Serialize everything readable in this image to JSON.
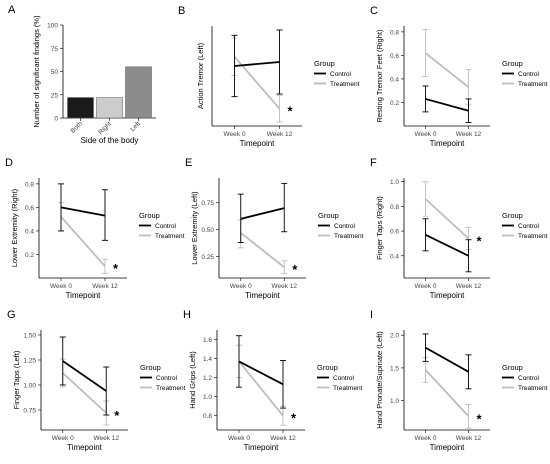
{
  "figure": {
    "colors": {
      "control": "#000000",
      "treatment": "#bdbdbd",
      "axis": "#000000"
    },
    "legend_title": "Group",
    "legend_labels": [
      "Control",
      "Treatment"
    ]
  },
  "chart_data": [
    {
      "panel": "A",
      "type": "bar",
      "xlabel": "Side of the body",
      "ylabel": "Number of significant findings (%)",
      "categories": [
        "Both",
        "Right",
        "Left"
      ],
      "values": [
        22,
        22,
        55
      ],
      "bar_colors": [
        "#1a1a1a",
        "#cccccc",
        "#8c8c8c"
      ],
      "ylim": [
        0,
        100
      ],
      "yticks": [
        0,
        25,
        50,
        75,
        100
      ],
      "grid": false
    },
    {
      "panel": "B",
      "type": "line",
      "xlabel": "Timepoint",
      "ylabel": "Action Tremor (Left)",
      "categories": [
        "Week 0",
        "Week 12"
      ],
      "series": [
        {
          "name": "Control",
          "values": [
            0.5,
            0.53
          ],
          "err_low": [
            0.27,
            0.29
          ],
          "err_high": [
            0.73,
            0.77
          ]
        },
        {
          "name": "Treatment",
          "values": [
            0.57,
            0.18
          ],
          "err_low": [
            0.43,
            0.08
          ],
          "err_high": [
            0.71,
            0.28
          ]
        }
      ],
      "ylim": [
        0.05,
        0.8
      ],
      "yticks": [],
      "significant": "*",
      "legend": "right",
      "grid": false
    },
    {
      "panel": "C",
      "type": "line",
      "xlabel": "Timepoint",
      "ylabel": "Resting Tremor Feet (Right)",
      "categories": [
        "Week 0",
        "Week 12"
      ],
      "series": [
        {
          "name": "Control",
          "values": [
            0.23,
            0.13
          ],
          "err_low": [
            0.12,
            0.03
          ],
          "err_high": [
            0.34,
            0.23
          ]
        },
        {
          "name": "Treatment",
          "values": [
            0.62,
            0.33
          ],
          "err_low": [
            0.42,
            0.18
          ],
          "err_high": [
            0.82,
            0.48
          ]
        }
      ],
      "ylim": [
        0.0,
        0.85
      ],
      "yticks": [
        0.2,
        0.4,
        0.6,
        0.8
      ],
      "legend": "right",
      "grid": false
    },
    {
      "panel": "D",
      "type": "line",
      "xlabel": "Timepoint",
      "ylabel": "Lower Extremity (Right)",
      "categories": [
        "Week 0",
        "Week 12"
      ],
      "series": [
        {
          "name": "Control",
          "values": [
            0.6,
            0.53
          ],
          "err_low": [
            0.4,
            0.32
          ],
          "err_high": [
            0.8,
            0.75
          ]
        },
        {
          "name": "Treatment",
          "values": [
            0.52,
            0.1
          ],
          "err_low": [
            0.4,
            0.04
          ],
          "err_high": [
            0.64,
            0.16
          ]
        }
      ],
      "ylim": [
        0.0,
        0.85
      ],
      "yticks": [
        0.2,
        0.4,
        0.6,
        0.8
      ],
      "significant": "*",
      "legend": "right",
      "grid": false
    },
    {
      "panel": "E",
      "type": "line",
      "xlabel": "Timepoint",
      "ylabel": "Lower Extremity (Left)",
      "categories": [
        "Week 0",
        "Week 12"
      ],
      "series": [
        {
          "name": "Control",
          "values": [
            0.6,
            0.7
          ],
          "err_low": [
            0.38,
            0.48
          ],
          "err_high": [
            0.83,
            0.93
          ]
        },
        {
          "name": "Treatment",
          "values": [
            0.47,
            0.15
          ],
          "err_low": [
            0.33,
            0.09
          ],
          "err_high": [
            0.59,
            0.21
          ]
        }
      ],
      "ylim": [
        0.05,
        0.98
      ],
      "yticks": [
        0.25,
        0.5,
        0.75
      ],
      "significant": "*",
      "legend": "right",
      "grid": false
    },
    {
      "panel": "F",
      "type": "line",
      "xlabel": "Timepoint",
      "ylabel": "Finger Taps (Right)",
      "categories": [
        "Week 0",
        "Week 12"
      ],
      "series": [
        {
          "name": "Control",
          "values": [
            0.57,
            0.4
          ],
          "err_low": [
            0.44,
            0.27
          ],
          "err_high": [
            0.7,
            0.53
          ]
        },
        {
          "name": "Treatment",
          "values": [
            0.86,
            0.54
          ],
          "err_low": [
            0.72,
            0.45
          ],
          "err_high": [
            1.0,
            0.63
          ]
        }
      ],
      "ylim": [
        0.22,
        1.03
      ],
      "yticks": [
        0.4,
        0.6,
        0.8,
        1.0
      ],
      "significant": "*",
      "legend": "right",
      "grid": false
    },
    {
      "panel": "G",
      "type": "line",
      "xlabel": "Timepoint",
      "ylabel": "Finger Taps (Left)",
      "categories": [
        "Week 0",
        "Week 12"
      ],
      "series": [
        {
          "name": "Control",
          "values": [
            1.24,
            0.94
          ],
          "err_low": [
            1.0,
            0.7
          ],
          "err_high": [
            1.48,
            1.18
          ]
        },
        {
          "name": "Treatment",
          "values": [
            1.12,
            0.72
          ],
          "err_low": [
            0.98,
            0.6
          ],
          "err_high": [
            1.26,
            0.84
          ]
        }
      ],
      "ylim": [
        0.55,
        1.55
      ],
      "yticks": [
        0.75,
        1.0,
        1.25,
        1.5
      ],
      "significant": "*",
      "legend": "right",
      "grid": false
    },
    {
      "panel": "H",
      "type": "line",
      "xlabel": "Timepoint",
      "ylabel": "Hand Grips (Left)",
      "categories": [
        "Week 0",
        "Week 12"
      ],
      "series": [
        {
          "name": "Control",
          "values": [
            1.37,
            1.13
          ],
          "err_low": [
            1.1,
            0.88
          ],
          "err_high": [
            1.64,
            1.38
          ]
        },
        {
          "name": "Treatment",
          "values": [
            1.37,
            0.8
          ],
          "err_low": [
            1.2,
            0.7
          ],
          "err_high": [
            1.54,
            0.9
          ]
        }
      ],
      "ylim": [
        0.65,
        1.7
      ],
      "yticks": [
        0.8,
        1.0,
        1.2,
        1.4,
        1.6
      ],
      "significant": "*",
      "legend": "right",
      "grid": false
    },
    {
      "panel": "I",
      "type": "line",
      "xlabel": "Timepoint",
      "ylabel": "Hand Pronate/Supinate (Left)",
      "categories": [
        "Week 0",
        "Week 12"
      ],
      "series": [
        {
          "name": "Control",
          "values": [
            1.81,
            1.44
          ],
          "err_low": [
            1.6,
            1.18
          ],
          "err_high": [
            2.02,
            1.7
          ]
        },
        {
          "name": "Treatment",
          "values": [
            1.47,
            0.76
          ],
          "err_low": [
            1.28,
            0.58
          ],
          "err_high": [
            1.66,
            0.94
          ]
        }
      ],
      "ylim": [
        0.55,
        2.08
      ],
      "yticks": [
        1.0,
        1.5,
        2.0
      ],
      "significant": "*",
      "legend": "right",
      "grid": false
    }
  ]
}
